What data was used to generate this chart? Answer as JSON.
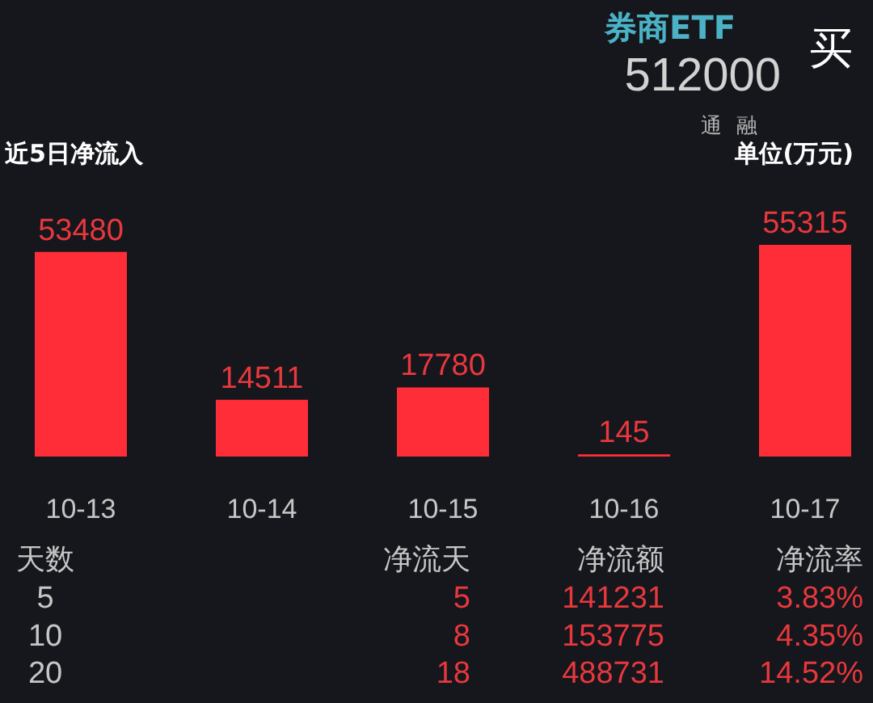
{
  "chart_data": [
    {
      "type": "bar",
      "title": "近5日净流入",
      "categories": [
        "10-13",
        "10-14",
        "10-15",
        "10-16",
        "10-17"
      ],
      "values": [
        53480,
        14511,
        17780,
        145,
        55315
      ],
      "color": "#ff2d37",
      "data_labels": true,
      "annotations": [
        "券商ETF",
        "512000",
        "买",
        "通",
        "融",
        "单位(万元)"
      ]
    },
    {
      "type": "other",
      "annotations": [
        "天数",
        "净流天",
        "净流额",
        "净流率",
        "5",
        "5",
        "141231",
        "3.83%",
        "10",
        "8",
        "153775",
        "4.35%",
        "20",
        "18",
        "488731",
        "14.52%"
      ]
    }
  ]
}
